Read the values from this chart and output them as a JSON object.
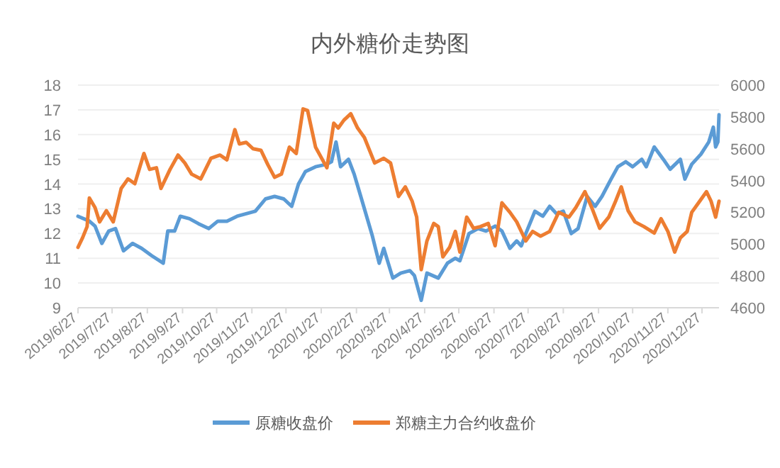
{
  "chart_data": {
    "type": "line",
    "title": "内外糖价走势图",
    "legend": "bottom",
    "grid": "y",
    "line_style": "solid",
    "xlim": [
      "2019-06-27",
      "2021-01-11"
    ],
    "xticks": [
      {
        "value": "2019-06-27",
        "label": "2019/6/27"
      },
      {
        "value": "2019-07-27",
        "label": "2019/7/27"
      },
      {
        "value": "2019-08-27",
        "label": "2019/8/27"
      },
      {
        "value": "2019-09-27",
        "label": "2019/9/27"
      },
      {
        "value": "2019-10-27",
        "label": "2019/10/27"
      },
      {
        "value": "2019-11-27",
        "label": "2019/11/27"
      },
      {
        "value": "2019-12-27",
        "label": "2019/12/27"
      },
      {
        "value": "2020-01-27",
        "label": "2020/1/27"
      },
      {
        "value": "2020-02-27",
        "label": "2020/2/27"
      },
      {
        "value": "2020-03-27",
        "label": "2020/3/27"
      },
      {
        "value": "2020-04-27",
        "label": "2020/4/27"
      },
      {
        "value": "2020-05-27",
        "label": "2020/5/27"
      },
      {
        "value": "2020-06-27",
        "label": "2020/6/27"
      },
      {
        "value": "2020-07-27",
        "label": "2020/7/27"
      },
      {
        "value": "2020-08-27",
        "label": "2020/8/27"
      },
      {
        "value": "2020-09-27",
        "label": "2020/9/27"
      },
      {
        "value": "2020-10-27",
        "label": "2020/10/27"
      },
      {
        "value": "2020-11-27",
        "label": "2020/11/27"
      },
      {
        "value": "2020-12-27",
        "label": "2020/12/27"
      }
    ],
    "ylim": [
      9,
      18
    ],
    "yticks": [
      9,
      10,
      11,
      12,
      13,
      14,
      15,
      16,
      17,
      18
    ],
    "y2lim": [
      4600,
      6000
    ],
    "y2ticks": [
      4600,
      4800,
      5000,
      5200,
      5400,
      5600,
      5800,
      6000
    ],
    "series": [
      {
        "name": "原糖收盘价",
        "color": "#5b9bd5",
        "x": [
          "2019-06-27",
          "2019-07-07",
          "2019-07-12",
          "2019-07-18",
          "2019-07-24",
          "2019-07-30",
          "2019-08-06",
          "2019-08-14",
          "2019-08-22",
          "2019-08-31",
          "2019-09-10",
          "2019-09-14",
          "2019-09-20",
          "2019-09-25",
          "2019-10-03",
          "2019-10-11",
          "2019-10-20",
          "2019-10-28",
          "2019-11-05",
          "2019-11-14",
          "2019-11-22",
          "2019-11-30",
          "2019-12-09",
          "2019-12-17",
          "2019-12-25",
          "2020-01-01",
          "2020-01-07",
          "2020-01-13",
          "2020-01-22",
          "2020-02-01",
          "2020-02-05",
          "2020-02-09",
          "2020-02-13",
          "2020-02-20",
          "2020-02-25",
          "2020-03-05",
          "2020-03-12",
          "2020-03-18",
          "2020-03-22",
          "2020-03-30",
          "2020-04-06",
          "2020-04-14",
          "2020-04-18",
          "2020-04-24",
          "2020-04-29",
          "2020-05-09",
          "2020-05-17",
          "2020-05-24",
          "2020-05-28",
          "2020-06-05",
          "2020-06-13",
          "2020-06-20",
          "2020-06-28",
          "2020-07-04",
          "2020-07-11",
          "2020-07-17",
          "2020-07-21",
          "2020-07-25",
          "2020-08-02",
          "2020-08-09",
          "2020-08-15",
          "2020-08-21",
          "2020-08-27",
          "2020-09-03",
          "2020-09-09",
          "2020-09-17",
          "2020-09-24",
          "2020-09-30",
          "2020-10-08",
          "2020-10-14",
          "2020-10-21",
          "2020-10-27",
          "2020-11-04",
          "2020-11-08",
          "2020-11-15",
          "2020-11-23",
          "2020-11-29",
          "2020-12-08",
          "2020-12-12",
          "2020-12-18",
          "2020-12-26",
          "2021-01-02",
          "2021-01-06",
          "2021-01-08",
          "2021-01-10",
          "2021-01-11"
        ],
        "values": [
          12.7,
          12.5,
          12.3,
          11.6,
          12.1,
          12.2,
          11.3,
          11.6,
          11.4,
          11.1,
          10.8,
          12.1,
          12.1,
          12.7,
          12.6,
          12.4,
          12.2,
          12.5,
          12.5,
          12.7,
          12.8,
          12.9,
          13.4,
          13.5,
          13.4,
          13.1,
          14.0,
          14.5,
          14.7,
          14.8,
          14.9,
          15.7,
          14.7,
          15.0,
          14.4,
          13.0,
          11.9,
          10.8,
          11.4,
          10.2,
          10.4,
          10.5,
          10.3,
          9.3,
          10.4,
          10.2,
          10.8,
          11.0,
          10.9,
          12.0,
          12.2,
          12.1,
          12.3,
          12.1,
          11.4,
          11.7,
          11.5,
          12.0,
          12.9,
          12.7,
          13.1,
          12.8,
          12.9,
          12.0,
          12.2,
          13.5,
          13.1,
          13.5,
          14.2,
          14.7,
          14.9,
          14.7,
          15.0,
          14.7,
          15.5,
          15.0,
          14.6,
          15.0,
          14.2,
          14.8,
          15.2,
          15.7,
          16.3,
          15.5,
          15.7,
          16.8
        ]
      },
      {
        "name": "郑糖主力合约收盘价",
        "color": "#ed7d31",
        "axis": "y2",
        "x": [
          "2019-06-27",
          "2019-07-01",
          "2019-07-05",
          "2019-07-07",
          "2019-07-12",
          "2019-07-16",
          "2019-07-22",
          "2019-07-28",
          "2019-08-04",
          "2019-08-10",
          "2019-08-16",
          "2019-08-24",
          "2019-08-29",
          "2019-09-04",
          "2019-09-08",
          "2019-09-16",
          "2019-09-23",
          "2019-09-29",
          "2019-10-05",
          "2019-10-13",
          "2019-10-22",
          "2019-10-30",
          "2019-11-05",
          "2019-11-12",
          "2019-11-16",
          "2019-11-22",
          "2019-11-28",
          "2019-12-05",
          "2019-12-11",
          "2019-12-17",
          "2019-12-23",
          "2019-12-30",
          "2020-01-05",
          "2020-01-11",
          "2020-01-15",
          "2020-01-22",
          "2020-02-01",
          "2020-02-07",
          "2020-02-11",
          "2020-02-16",
          "2020-02-22",
          "2020-02-28",
          "2020-03-05",
          "2020-03-14",
          "2020-03-22",
          "2020-03-28",
          "2020-04-04",
          "2020-04-10",
          "2020-04-16",
          "2020-04-20",
          "2020-04-24",
          "2020-04-29",
          "2020-05-05",
          "2020-05-09",
          "2020-05-13",
          "2020-05-19",
          "2020-05-24",
          "2020-05-28",
          "2020-06-03",
          "2020-06-09",
          "2020-06-15",
          "2020-06-22",
          "2020-06-28",
          "2020-07-04",
          "2020-07-11",
          "2020-07-17",
          "2020-07-25",
          "2020-07-31",
          "2020-08-07",
          "2020-08-15",
          "2020-08-23",
          "2020-09-01",
          "2020-09-07",
          "2020-09-15",
          "2020-09-21",
          "2020-09-28",
          "2020-10-06",
          "2020-10-12",
          "2020-10-17",
          "2020-10-23",
          "2020-10-29",
          "2020-11-06",
          "2020-11-15",
          "2020-11-21",
          "2020-11-27",
          "2020-12-03",
          "2020-12-08",
          "2020-12-14",
          "2020-12-18",
          "2020-12-24",
          "2020-12-31",
          "2021-01-04",
          "2021-01-08",
          "2021-01-11"
        ],
        "values": [
          4980,
          5040,
          5110,
          5290,
          5230,
          5140,
          5210,
          5140,
          5350,
          5410,
          5380,
          5570,
          5470,
          5480,
          5350,
          5470,
          5560,
          5510,
          5440,
          5410,
          5540,
          5560,
          5530,
          5720,
          5630,
          5640,
          5600,
          5590,
          5500,
          5420,
          5440,
          5610,
          5570,
          5850,
          5840,
          5610,
          5480,
          5760,
          5730,
          5780,
          5820,
          5730,
          5670,
          5510,
          5540,
          5510,
          5300,
          5360,
          5270,
          5170,
          4840,
          5020,
          5130,
          5110,
          4920,
          4980,
          5080,
          4950,
          5170,
          5100,
          5110,
          5130,
          4990,
          5260,
          5200,
          5140,
          5020,
          5080,
          5050,
          5080,
          5200,
          5170,
          5230,
          5330,
          5230,
          5100,
          5170,
          5270,
          5360,
          5210,
          5140,
          5110,
          5070,
          5160,
          5080,
          4950,
          5040,
          5080,
          5200,
          5260,
          5330,
          5270,
          5170,
          5270
        ]
      }
    ]
  }
}
